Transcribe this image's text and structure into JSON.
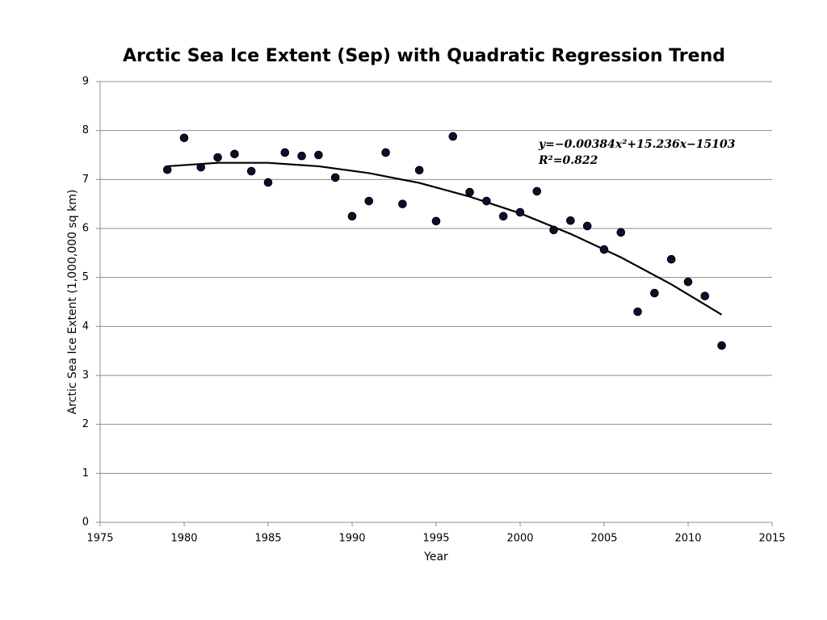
{
  "chart_data": {
    "type": "scatter",
    "title": "Arctic Sea Ice Extent (Sep) with Quadratic Regression Trend",
    "x_label": "Year",
    "y_label": "Arctic Sea Ice Extent (1,000,000 sq km)",
    "x": [
      1979,
      1980,
      1981,
      1982,
      1983,
      1984,
      1985,
      1986,
      1987,
      1988,
      1989,
      1990,
      1991,
      1992,
      1993,
      1994,
      1995,
      1996,
      1997,
      1998,
      1999,
      2000,
      2001,
      2002,
      2003,
      2004,
      2005,
      2006,
      2007,
      2008,
      2009,
      2010,
      2011,
      2012
    ],
    "values": [
      7.2,
      7.85,
      7.25,
      7.45,
      7.52,
      7.17,
      6.94,
      7.55,
      7.48,
      7.5,
      7.04,
      6.25,
      6.56,
      7.55,
      6.5,
      7.19,
      6.15,
      7.88,
      6.74,
      6.56,
      6.25,
      6.33,
      6.76,
      5.97,
      6.16,
      6.05,
      5.57,
      5.92,
      4.3,
      4.68,
      5.37,
      4.91,
      4.62,
      3.61
    ],
    "color": "#0d0d2b",
    "trend": {
      "x": [
        1979,
        1982,
        1985,
        1988,
        1991,
        1994,
        1997,
        2000,
        2003,
        2006,
        2009,
        2012
      ],
      "values": [
        7.27,
        7.34,
        7.34,
        7.27,
        7.13,
        6.93,
        6.65,
        6.31,
        5.89,
        5.41,
        4.86,
        4.24
      ],
      "color": "#000000"
    },
    "equation": "y=−0.00384x²+15.236x−15103",
    "r_squared": "R²=0.822",
    "xlim": [
      1975,
      2015
    ],
    "xticks": [
      1975,
      1980,
      1985,
      1990,
      1995,
      2000,
      2005,
      2010,
      2015
    ],
    "ylim": [
      0,
      9
    ],
    "yticks": [
      0,
      1,
      2,
      3,
      4,
      5,
      6,
      7,
      8,
      9
    ],
    "grid": true
  }
}
